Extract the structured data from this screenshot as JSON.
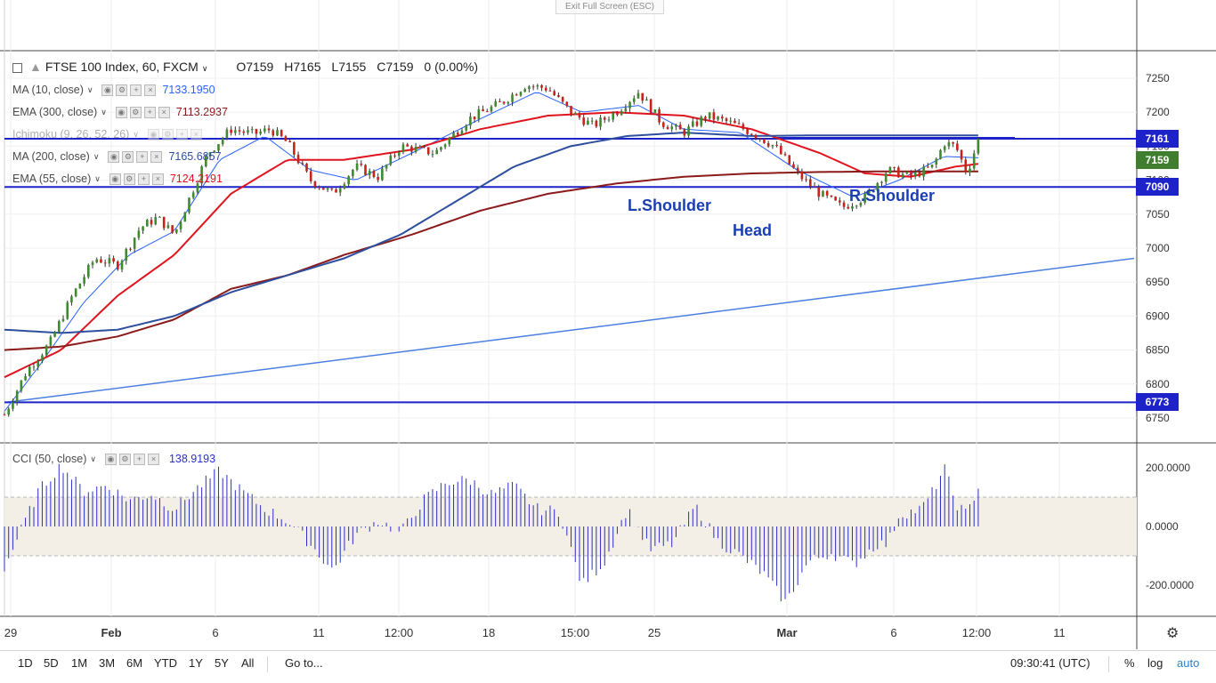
{
  "window": {
    "exit_fullscreen_label": "Exit Full Screen (ESC)"
  },
  "symbol": {
    "title": "FTSE 100 Index, 60, FXCM",
    "open": "O7159",
    "high": "H7165",
    "low": "L7155",
    "close": "C7159",
    "change": "0 (0.00%)"
  },
  "indicators": [
    {
      "name": "MA (10, close)",
      "value": "7133.1950",
      "color": "#2962ff"
    },
    {
      "name": "EMA (300, close)",
      "value": "7113.2937",
      "color": "#8b1a1a"
    },
    {
      "name": "Ichimoku (9, 26, 52, 26)",
      "value": "",
      "color": "#6a8ad8"
    },
    {
      "name": "MA (200, close)",
      "value": "7165.6857",
      "color": "#2d4f9e"
    },
    {
      "name": "EMA (55, close)",
      "value": "7124.2191",
      "color": "#e0141e"
    }
  ],
  "cci_legend": {
    "name": "CCI (50, close)",
    "value": "138.9193"
  },
  "price_labels": [
    {
      "value": "7161",
      "color": "#1e22c9"
    },
    {
      "value": "7159",
      "color": "#3f7e2e"
    },
    {
      "value": "7090",
      "color": "#1e22c9"
    },
    {
      "value": "6773",
      "color": "#1e22c9"
    }
  ],
  "annotations": {
    "left_shoulder": "L.Shoulder",
    "head": "Head",
    "right_shoulder": "R.Shoulder"
  },
  "bottom_toolbar": {
    "ranges": [
      "1D",
      "5D",
      "1M",
      "3M",
      "6M",
      "YTD",
      "1Y",
      "5Y",
      "All"
    ],
    "goto": "Go to...",
    "time": "09:30:41 (UTC)",
    "percent": "%",
    "log": "log",
    "auto": "auto"
  },
  "chart_data": [
    {
      "type": "candlestick",
      "title": "FTSE 100 Index, 60, FXCM",
      "y_axis_ticks": [
        7250,
        7200,
        7150,
        7100,
        7050,
        7000,
        6950,
        6900,
        6850,
        6800,
        6750
      ],
      "ylim": [
        6735,
        7265
      ],
      "x_tick_labels": [
        "29",
        "Feb",
        "6",
        "11",
        "12:00",
        "18",
        "15:00",
        "25",
        "Mar",
        "6",
        "12:00",
        "11"
      ],
      "horizontal_lines": [
        7161,
        7090,
        6773
      ],
      "trendline": {
        "from": [
          0,
          6773
        ],
        "to": [
          1,
          6985
        ]
      },
      "close_path": [
        [
          0,
          6755
        ],
        [
          0.02,
          6820
        ],
        [
          0.04,
          6860
        ],
        [
          0.06,
          6930
        ],
        [
          0.08,
          6985
        ],
        [
          0.1,
          6975
        ],
        [
          0.12,
          7030
        ],
        [
          0.135,
          7045
        ],
        [
          0.15,
          7020
        ],
        [
          0.165,
          7080
        ],
        [
          0.18,
          7140
        ],
        [
          0.2,
          7175
        ],
        [
          0.22,
          7168
        ],
        [
          0.235,
          7175
        ],
        [
          0.25,
          7155
        ],
        [
          0.27,
          7100
        ],
        [
          0.29,
          7080
        ],
        [
          0.31,
          7120
        ],
        [
          0.33,
          7105
        ],
        [
          0.35,
          7150
        ],
        [
          0.38,
          7140
        ],
        [
          0.41,
          7190
        ],
        [
          0.44,
          7215
        ],
        [
          0.46,
          7240
        ],
        [
          0.48,
          7235
        ],
        [
          0.5,
          7200
        ],
        [
          0.52,
          7180
        ],
        [
          0.54,
          7200
        ],
        [
          0.56,
          7230
        ],
        [
          0.58,
          7185
        ],
        [
          0.6,
          7170
        ],
        [
          0.62,
          7195
        ],
        [
          0.64,
          7185
        ],
        [
          0.66,
          7170
        ],
        [
          0.68,
          7150
        ],
        [
          0.7,
          7110
        ],
        [
          0.72,
          7080
        ],
        [
          0.74,
          7060
        ],
        [
          0.76,
          7075
        ],
        [
          0.78,
          7115
        ],
        [
          0.8,
          7105
        ],
        [
          0.82,
          7120
        ],
        [
          0.83,
          7155
        ],
        [
          0.84,
          7150
        ],
        [
          0.85,
          7110
        ],
        [
          0.86,
          7159
        ]
      ],
      "ma_lines": [
        {
          "name": "MA (10, close)",
          "color": "#2962ff",
          "points": [
            [
              0,
              6760
            ],
            [
              0.03,
              6825
            ],
            [
              0.07,
              6920
            ],
            [
              0.11,
              6990
            ],
            [
              0.15,
              7025
            ],
            [
              0.19,
              7130
            ],
            [
              0.23,
              7165
            ],
            [
              0.27,
              7115
            ],
            [
              0.31,
              7100
            ],
            [
              0.36,
              7140
            ],
            [
              0.42,
              7190
            ],
            [
              0.47,
              7230
            ],
            [
              0.51,
              7200
            ],
            [
              0.56,
              7210
            ],
            [
              0.6,
              7175
            ],
            [
              0.65,
              7170
            ],
            [
              0.7,
              7115
            ],
            [
              0.75,
              7075
            ],
            [
              0.79,
              7100
            ],
            [
              0.83,
              7135
            ],
            [
              0.86,
              7133
            ]
          ]
        },
        {
          "name": "EMA (55, close)",
          "color": "#e0141e",
          "points": [
            [
              0,
              6810
            ],
            [
              0.05,
              6850
            ],
            [
              0.1,
              6930
            ],
            [
              0.15,
              6990
            ],
            [
              0.2,
              7080
            ],
            [
              0.25,
              7130
            ],
            [
              0.3,
              7130
            ],
            [
              0.36,
              7145
            ],
            [
              0.42,
              7175
            ],
            [
              0.48,
              7195
            ],
            [
              0.54,
              7200
            ],
            [
              0.6,
              7195
            ],
            [
              0.66,
              7175
            ],
            [
              0.72,
              7140
            ],
            [
              0.76,
              7110
            ],
            [
              0.8,
              7105
            ],
            [
              0.84,
              7120
            ],
            [
              0.86,
              7124
            ]
          ]
        },
        {
          "name": "EMA (300, close)",
          "color": "#8b1a1a",
          "points": [
            [
              0,
              6850
            ],
            [
              0.05,
              6855
            ],
            [
              0.1,
              6870
            ],
            [
              0.15,
              6895
            ],
            [
              0.2,
              6940
            ],
            [
              0.25,
              6960
            ],
            [
              0.3,
              6990
            ],
            [
              0.36,
              7020
            ],
            [
              0.42,
              7055
            ],
            [
              0.48,
              7080
            ],
            [
              0.54,
              7095
            ],
            [
              0.6,
              7105
            ],
            [
              0.66,
              7110
            ],
            [
              0.72,
              7112
            ],
            [
              0.78,
              7113
            ],
            [
              0.86,
              7113
            ]
          ]
        },
        {
          "name": "MA (200, close)",
          "color": "#2d4f9e",
          "points": [
            [
              0,
              6880
            ],
            [
              0.05,
              6875
            ],
            [
              0.1,
              6880
            ],
            [
              0.15,
              6900
            ],
            [
              0.2,
              6935
            ],
            [
              0.25,
              6960
            ],
            [
              0.3,
              6985
            ],
            [
              0.35,
              7020
            ],
            [
              0.4,
              7070
            ],
            [
              0.45,
              7120
            ],
            [
              0.5,
              7150
            ],
            [
              0.55,
              7165
            ],
            [
              0.6,
              7170
            ],
            [
              0.66,
              7165
            ],
            [
              0.72,
              7166
            ],
            [
              0.86,
              7166
            ]
          ]
        }
      ]
    },
    {
      "type": "bar",
      "title": "CCI (50, close)",
      "y_axis_ticks": [
        200,
        0,
        -200
      ],
      "ylim": [
        -280,
        280
      ],
      "band": [
        -100,
        100
      ],
      "profile": [
        [
          0,
          -140
        ],
        [
          0.03,
          120
        ],
        [
          0.05,
          210
        ],
        [
          0.07,
          120
        ],
        [
          0.09,
          140
        ],
        [
          0.11,
          90
        ],
        [
          0.13,
          110
        ],
        [
          0.15,
          60
        ],
        [
          0.17,
          130
        ],
        [
          0.19,
          190
        ],
        [
          0.21,
          120
        ],
        [
          0.23,
          60
        ],
        [
          0.25,
          20
        ],
        [
          0.27,
          -60
        ],
        [
          0.29,
          -150
        ],
        [
          0.31,
          -30
        ],
        [
          0.33,
          20
        ],
        [
          0.35,
          -20
        ],
        [
          0.37,
          90
        ],
        [
          0.39,
          150
        ],
        [
          0.41,
          160
        ],
        [
          0.43,
          110
        ],
        [
          0.45,
          140
        ],
        [
          0.47,
          60
        ],
        [
          0.49,
          50
        ],
        [
          0.51,
          -200
        ],
        [
          0.53,
          -120
        ],
        [
          0.55,
          60
        ],
        [
          0.57,
          -80
        ],
        [
          0.59,
          -60
        ],
        [
          0.61,
          70
        ],
        [
          0.63,
          -50
        ],
        [
          0.65,
          -100
        ],
        [
          0.67,
          -160
        ],
        [
          0.69,
          -260
        ],
        [
          0.71,
          -120
        ],
        [
          0.73,
          -90
        ],
        [
          0.75,
          -130
        ],
        [
          0.77,
          -60
        ],
        [
          0.78,
          -60
        ],
        [
          0.79,
          40
        ],
        [
          0.81,
          60
        ],
        [
          0.82,
          120
        ],
        [
          0.83,
          200
        ],
        [
          0.84,
          80
        ],
        [
          0.85,
          40
        ],
        [
          0.86,
          139
        ]
      ]
    }
  ]
}
